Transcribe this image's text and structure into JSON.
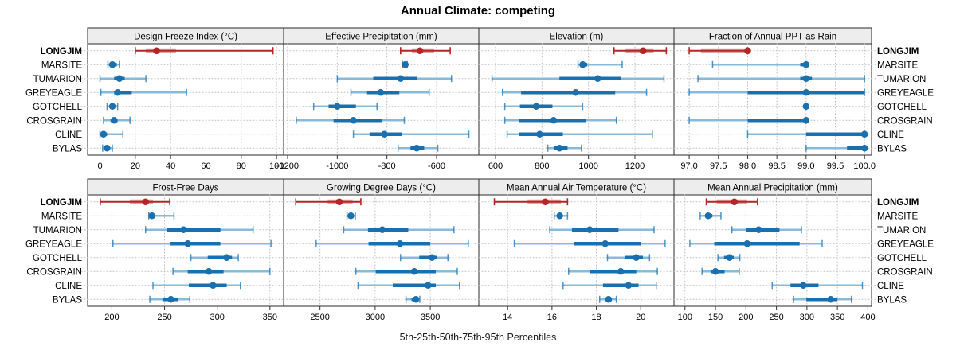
{
  "title": "Annual Climate: competing",
  "xlabel": "5th-25th-50th-75th-95th Percentiles",
  "sites": [
    "LONGJIM",
    "MARSITE",
    "TUMARION",
    "GREYEAGLE",
    "GOTCHELL",
    "CROSGRAIN",
    "CLINE",
    "BYLAS"
  ],
  "highlight_site": "LONGJIM",
  "colors": {
    "highlight": "#B22626",
    "highlight_light": "#E08A8A",
    "normal": "#1A6FAF",
    "normal_light": "#88BADC",
    "header_bg": "#EDEDED",
    "panel_border": "#2A2A2A",
    "grid": "#BFBFBF",
    "text": "#000000"
  },
  "chart_data": [
    {
      "type": "dot-whisker",
      "title": "Design Freeze Index (°C)",
      "xlim": [
        -7,
        104
      ],
      "ticks": [
        0,
        20,
        40,
        60,
        80,
        100
      ],
      "tick_labels": [
        "0",
        "20",
        "40",
        "60",
        "80",
        "100"
      ],
      "percentiles": {
        "LONGJIM": [
          20,
          26,
          32,
          43,
          98
        ],
        "MARSITE": [
          4.5,
          6,
          7,
          9.5,
          11
        ],
        "TUMARION": [
          0,
          8,
          11,
          14,
          26
        ],
        "GREYEAGLE": [
          0.5,
          8,
          10,
          18,
          49
        ],
        "GOTCHELL": [
          4,
          5.5,
          7,
          8.5,
          10
        ],
        "CROSGRAIN": [
          2,
          6,
          8,
          10,
          17
        ],
        "CLINE": [
          0,
          1,
          2,
          4,
          13
        ],
        "BYLAS": [
          1.5,
          3,
          4,
          5,
          7
        ]
      }
    },
    {
      "type": "dot-whisker",
      "title": "Effective Precipitation (mm)",
      "xlim": [
        -1216,
        -430
      ],
      "ticks": [
        -1200,
        -1000,
        -800,
        -600
      ],
      "tick_labels": [
        "-1200",
        "-1000",
        "-800",
        "-600"
      ],
      "percentiles": {
        "LONGJIM": [
          -745,
          -700,
          -667,
          -610,
          -545
        ],
        "MARSITE": [
          -737,
          -730,
          -726,
          -722,
          -718
        ],
        "TUMARION": [
          -1000,
          -855,
          -745,
          -680,
          -540
        ],
        "GREYEAGLE": [
          -945,
          -880,
          -825,
          -750,
          -630
        ],
        "GOTCHELL": [
          -1095,
          -1035,
          -1000,
          -925,
          -840
        ],
        "CROSGRAIN": [
          -1165,
          -1015,
          -935,
          -820,
          -730
        ],
        "CLINE": [
          -935,
          -870,
          -810,
          -740,
          -470
        ],
        "BYLAS": [
          -755,
          -705,
          -680,
          -650,
          -595
        ]
      }
    },
    {
      "type": "dot-whisker",
      "title": "Elevation (m)",
      "xlim": [
        528,
        1368
      ],
      "ticks": [
        600,
        800,
        1000,
        1200
      ],
      "tick_labels": [
        "600",
        "800",
        "1000",
        "1200"
      ],
      "percentiles": {
        "LONGJIM": [
          1110,
          1160,
          1235,
          1280,
          1335
        ],
        "MARSITE": [
          955,
          965,
          975,
          995,
          1145
        ],
        "TUMARION": [
          585,
          875,
          1040,
          1140,
          1325
        ],
        "GREYEAGLE": [
          630,
          710,
          945,
          1115,
          1250
        ],
        "GOTCHELL": [
          640,
          705,
          775,
          845,
          975
        ],
        "CROSGRAIN": [
          640,
          700,
          850,
          990,
          1120
        ],
        "CLINE": [
          650,
          700,
          790,
          890,
          1275
        ],
        "BYLAS": [
          825,
          850,
          875,
          910,
          970
        ]
      }
    },
    {
      "type": "dot-whisker",
      "title": "Fraction of Annual PPT as Rain",
      "xlim": [
        96.74,
        100.12
      ],
      "ticks": [
        97.0,
        97.5,
        98.0,
        98.5,
        99.0,
        99.5,
        100.0
      ],
      "tick_labels": [
        "97.0",
        "97.5",
        "98.0",
        "98.5",
        "99.0",
        "99.5",
        "100.0"
      ],
      "percentiles": {
        "LONGJIM": [
          97.0,
          97.2,
          98.0,
          98.0,
          98.0
        ],
        "MARSITE": [
          97.4,
          98.9,
          99.0,
          99.0,
          99.0
        ],
        "TUMARION": [
          97.15,
          98.9,
          99.0,
          99.1,
          100.0
        ],
        "GREYEAGLE": [
          97.0,
          98.0,
          99.0,
          100.0,
          100.0
        ],
        "GOTCHELL": [
          99.0,
          99.0,
          99.0,
          99.0,
          99.0
        ],
        "CROSGRAIN": [
          97.0,
          98.0,
          99.0,
          99.0,
          99.0
        ],
        "CLINE": [
          98.0,
          99.0,
          100.0,
          100.0,
          100.0
        ],
        "BYLAS": [
          99.0,
          99.7,
          100.0,
          100.0,
          100.0
        ]
      }
    },
    {
      "type": "dot-whisker",
      "title": "Frost-Free Days",
      "xlim": [
        177,
        363
      ],
      "ticks": [
        200,
        250,
        300,
        350
      ],
      "tick_labels": [
        "200",
        "250",
        "300",
        "350"
      ],
      "percentiles": {
        "LONGJIM": [
          189,
          217,
          232,
          239,
          255
        ],
        "MARSITE": [
          235,
          236,
          238,
          241,
          259
        ],
        "TUMARION": [
          232,
          252,
          268,
          303,
          334
        ],
        "GREYEAGLE": [
          201,
          255,
          272,
          303,
          351
        ],
        "GOTCHELL": [
          275,
          291,
          309,
          314,
          320
        ],
        "CROSGRAIN": [
          258,
          272,
          292,
          306,
          350
        ],
        "CLINE": [
          239,
          273,
          296,
          309,
          322
        ],
        "BYLAS": [
          236,
          248,
          256,
          263,
          274
        ]
      }
    },
    {
      "type": "dot-whisker",
      "title": "Growing Degree Days (°C)",
      "xlim": [
        2170,
        3940
      ],
      "ticks": [
        2500,
        3000,
        3500
      ],
      "tick_labels": [
        "2500",
        "3000",
        "3500"
      ],
      "percentiles": {
        "LONGJIM": [
          2280,
          2570,
          2675,
          2795,
          2870
        ],
        "MARSITE": [
          2745,
          2765,
          2780,
          2800,
          2820
        ],
        "TUMARION": [
          2715,
          2935,
          3065,
          3300,
          3715
        ],
        "GREYEAGLE": [
          2465,
          2940,
          3225,
          3500,
          3845
        ],
        "GOTCHELL": [
          3230,
          3400,
          3515,
          3560,
          3660
        ],
        "CROSGRAIN": [
          2825,
          3005,
          3355,
          3550,
          3745
        ],
        "CLINE": [
          2845,
          3160,
          3480,
          3550,
          3765
        ],
        "BYLAS": [
          3280,
          3330,
          3370,
          3390,
          3405
        ]
      }
    },
    {
      "type": "dot-whisker",
      "title": "Mean Annual Air Temperature (°C)",
      "xlim": [
        12.7,
        21.5
      ],
      "ticks": [
        14,
        16,
        18,
        20
      ],
      "tick_labels": [
        "14",
        "16",
        "18",
        "20"
      ],
      "percentiles": {
        "LONGJIM": [
          13.4,
          14.9,
          15.7,
          16.4,
          16.7
        ],
        "MARSITE": [
          16.1,
          16.25,
          16.35,
          16.45,
          16.7
        ],
        "TUMARION": [
          15.9,
          16.9,
          17.7,
          19.0,
          20.6
        ],
        "GREYEAGLE": [
          14.3,
          17.0,
          18.4,
          20.0,
          21.1
        ],
        "GOTCHELL": [
          18.5,
          19.3,
          19.8,
          20.1,
          20.4
        ],
        "CROSGRAIN": [
          16.75,
          17.7,
          19.1,
          19.8,
          20.75
        ],
        "CLINE": [
          16.5,
          18.3,
          19.45,
          19.9,
          20.7
        ],
        "BYLAS": [
          18.15,
          18.4,
          18.55,
          18.7,
          18.9
        ]
      }
    },
    {
      "type": "dot-whisker",
      "title": "Mean Annual Precipitation (mm)",
      "xlim": [
        82,
        406
      ],
      "ticks": [
        100,
        150,
        200,
        250,
        300,
        350,
        400
      ],
      "tick_labels": [
        "100",
        "150",
        "200",
        "250",
        "300",
        "350",
        "400"
      ],
      "percentiles": {
        "LONGJIM": [
          135,
          152,
          181,
          202,
          219
        ],
        "MARSITE": [
          125,
          133,
          138,
          145,
          159
        ],
        "TUMARION": [
          177,
          200,
          221,
          255,
          291
        ],
        "GREYEAGLE": [
          108,
          148,
          202,
          288,
          325
        ],
        "GOTCHELL": [
          154,
          164,
          173,
          180,
          190
        ],
        "CROSGRAIN": [
          128,
          142,
          150,
          165,
          189
        ],
        "CLINE": [
          243,
          273,
          294,
          319,
          391
        ],
        "BYLAS": [
          278,
          299,
          339,
          350,
          373
        ]
      }
    }
  ]
}
